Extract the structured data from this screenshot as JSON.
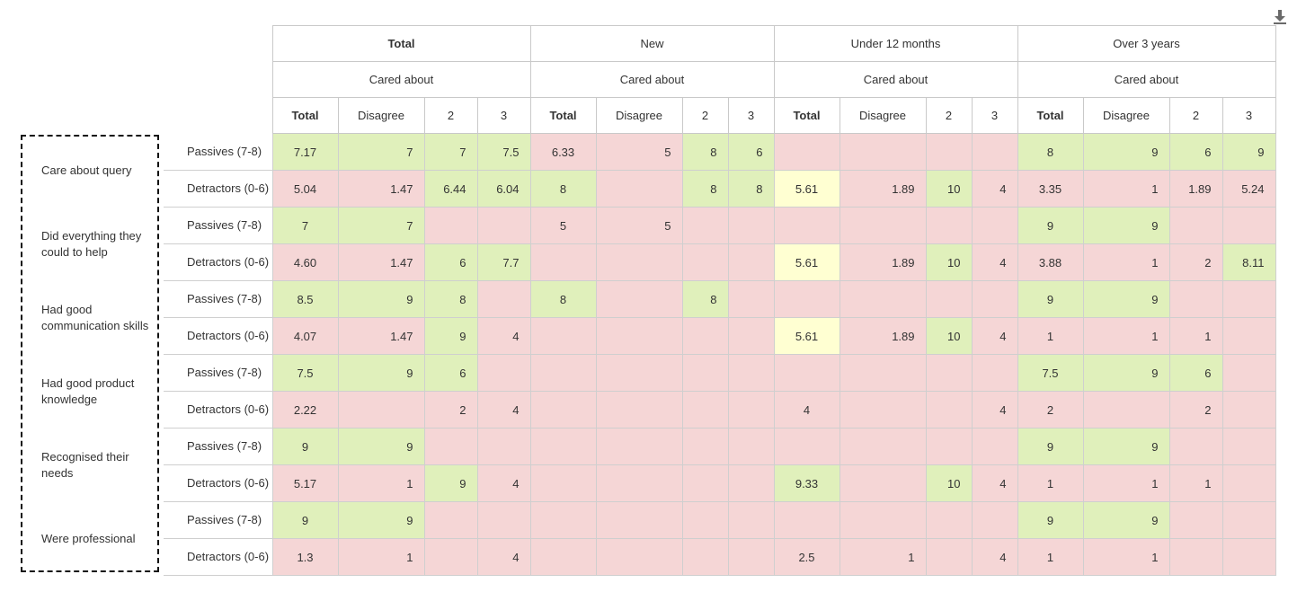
{
  "colors": {
    "green": "#e0f0bb",
    "pink": "#f5d6d6",
    "yellow": "#ffffd2",
    "grid": "#cfcfcf"
  },
  "toolbar": {
    "download_icon": "download-icon"
  },
  "header": {
    "groups": [
      "Total",
      "New",
      "Under 12 months",
      "Over 3 years"
    ],
    "sub": "Cared about",
    "cols": [
      "Total",
      "Disagree",
      "2",
      "3"
    ]
  },
  "rows": [
    {
      "label": "Care about query",
      "segs": [
        {
          "seg": "Passives (7-8)",
          "cells": [
            {
              "v": "7.17",
              "c": "green"
            },
            {
              "v": "7",
              "c": "green"
            },
            {
              "v": "7",
              "c": "green"
            },
            {
              "v": "7.5",
              "c": "green"
            },
            {
              "v": "6.33",
              "c": "pink"
            },
            {
              "v": "5",
              "c": "pink"
            },
            {
              "v": "8",
              "c": "green"
            },
            {
              "v": "6",
              "c": "green"
            },
            {
              "v": "",
              "c": "pink"
            },
            {
              "v": "",
              "c": "pink"
            },
            {
              "v": "",
              "c": "pink"
            },
            {
              "v": "",
              "c": "pink"
            },
            {
              "v": "8",
              "c": "green"
            },
            {
              "v": "9",
              "c": "green"
            },
            {
              "v": "6",
              "c": "green"
            },
            {
              "v": "9",
              "c": "green"
            }
          ]
        },
        {
          "seg": "Detractors (0-6)",
          "cells": [
            {
              "v": "5.04",
              "c": "pink"
            },
            {
              "v": "1.47",
              "c": "pink"
            },
            {
              "v": "6.44",
              "c": "green"
            },
            {
              "v": "6.04",
              "c": "green"
            },
            {
              "v": "8",
              "c": "green"
            },
            {
              "v": "",
              "c": "pink"
            },
            {
              "v": "8",
              "c": "green"
            },
            {
              "v": "8",
              "c": "green"
            },
            {
              "v": "5.61",
              "c": "yellow"
            },
            {
              "v": "1.89",
              "c": "pink"
            },
            {
              "v": "10",
              "c": "green"
            },
            {
              "v": "4",
              "c": "pink"
            },
            {
              "v": "3.35",
              "c": "pink"
            },
            {
              "v": "1",
              "c": "pink"
            },
            {
              "v": "1.89",
              "c": "pink"
            },
            {
              "v": "5.24",
              "c": "pink"
            }
          ]
        }
      ]
    },
    {
      "label": "Did everything they could to help",
      "segs": [
        {
          "seg": "Passives (7-8)",
          "cells": [
            {
              "v": "7",
              "c": "green"
            },
            {
              "v": "7",
              "c": "green"
            },
            {
              "v": "",
              "c": "pink"
            },
            {
              "v": "",
              "c": "pink"
            },
            {
              "v": "5",
              "c": "pink"
            },
            {
              "v": "5",
              "c": "pink"
            },
            {
              "v": "",
              "c": "pink"
            },
            {
              "v": "",
              "c": "pink"
            },
            {
              "v": "",
              "c": "pink"
            },
            {
              "v": "",
              "c": "pink"
            },
            {
              "v": "",
              "c": "pink"
            },
            {
              "v": "",
              "c": "pink"
            },
            {
              "v": "9",
              "c": "green"
            },
            {
              "v": "9",
              "c": "green"
            },
            {
              "v": "",
              "c": "pink"
            },
            {
              "v": "",
              "c": "pink"
            }
          ]
        },
        {
          "seg": "Detractors (0-6)",
          "cells": [
            {
              "v": "4.60",
              "c": "pink"
            },
            {
              "v": "1.47",
              "c": "pink"
            },
            {
              "v": "6",
              "c": "green"
            },
            {
              "v": "7.7",
              "c": "green"
            },
            {
              "v": "",
              "c": "pink"
            },
            {
              "v": "",
              "c": "pink"
            },
            {
              "v": "",
              "c": "pink"
            },
            {
              "v": "",
              "c": "pink"
            },
            {
              "v": "5.61",
              "c": "yellow"
            },
            {
              "v": "1.89",
              "c": "pink"
            },
            {
              "v": "10",
              "c": "green"
            },
            {
              "v": "4",
              "c": "pink"
            },
            {
              "v": "3.88",
              "c": "pink"
            },
            {
              "v": "1",
              "c": "pink"
            },
            {
              "v": "2",
              "c": "pink"
            },
            {
              "v": "8.11",
              "c": "green"
            }
          ]
        }
      ]
    },
    {
      "label": "Had good communication skills",
      "segs": [
        {
          "seg": "Passives (7-8)",
          "cells": [
            {
              "v": "8.5",
              "c": "green"
            },
            {
              "v": "9",
              "c": "green"
            },
            {
              "v": "8",
              "c": "green"
            },
            {
              "v": "",
              "c": "pink"
            },
            {
              "v": "8",
              "c": "green"
            },
            {
              "v": "",
              "c": "pink"
            },
            {
              "v": "8",
              "c": "green"
            },
            {
              "v": "",
              "c": "pink"
            },
            {
              "v": "",
              "c": "pink"
            },
            {
              "v": "",
              "c": "pink"
            },
            {
              "v": "",
              "c": "pink"
            },
            {
              "v": "",
              "c": "pink"
            },
            {
              "v": "9",
              "c": "green"
            },
            {
              "v": "9",
              "c": "green"
            },
            {
              "v": "",
              "c": "pink"
            },
            {
              "v": "",
              "c": "pink"
            }
          ]
        },
        {
          "seg": "Detractors (0-6)",
          "cells": [
            {
              "v": "4.07",
              "c": "pink"
            },
            {
              "v": "1.47",
              "c": "pink"
            },
            {
              "v": "9",
              "c": "green"
            },
            {
              "v": "4",
              "c": "pink"
            },
            {
              "v": "",
              "c": "pink"
            },
            {
              "v": "",
              "c": "pink"
            },
            {
              "v": "",
              "c": "pink"
            },
            {
              "v": "",
              "c": "pink"
            },
            {
              "v": "5.61",
              "c": "yellow"
            },
            {
              "v": "1.89",
              "c": "pink"
            },
            {
              "v": "10",
              "c": "green"
            },
            {
              "v": "4",
              "c": "pink"
            },
            {
              "v": "1",
              "c": "pink"
            },
            {
              "v": "1",
              "c": "pink"
            },
            {
              "v": "1",
              "c": "pink"
            },
            {
              "v": "",
              "c": "pink"
            }
          ]
        }
      ]
    },
    {
      "label": "Had good product knowledge",
      "segs": [
        {
          "seg": "Passives (7-8)",
          "cells": [
            {
              "v": "7.5",
              "c": "green"
            },
            {
              "v": "9",
              "c": "green"
            },
            {
              "v": "6",
              "c": "green"
            },
            {
              "v": "",
              "c": "pink"
            },
            {
              "v": "",
              "c": "pink"
            },
            {
              "v": "",
              "c": "pink"
            },
            {
              "v": "",
              "c": "pink"
            },
            {
              "v": "",
              "c": "pink"
            },
            {
              "v": "",
              "c": "pink"
            },
            {
              "v": "",
              "c": "pink"
            },
            {
              "v": "",
              "c": "pink"
            },
            {
              "v": "",
              "c": "pink"
            },
            {
              "v": "7.5",
              "c": "green"
            },
            {
              "v": "9",
              "c": "green"
            },
            {
              "v": "6",
              "c": "green"
            },
            {
              "v": "",
              "c": "pink"
            }
          ]
        },
        {
          "seg": "Detractors (0-6)",
          "cells": [
            {
              "v": "2.22",
              "c": "pink"
            },
            {
              "v": "",
              "c": "pink"
            },
            {
              "v": "2",
              "c": "pink"
            },
            {
              "v": "4",
              "c": "pink"
            },
            {
              "v": "",
              "c": "pink"
            },
            {
              "v": "",
              "c": "pink"
            },
            {
              "v": "",
              "c": "pink"
            },
            {
              "v": "",
              "c": "pink"
            },
            {
              "v": "4",
              "c": "pink"
            },
            {
              "v": "",
              "c": "pink"
            },
            {
              "v": "",
              "c": "pink"
            },
            {
              "v": "4",
              "c": "pink"
            },
            {
              "v": "2",
              "c": "pink"
            },
            {
              "v": "",
              "c": "pink"
            },
            {
              "v": "2",
              "c": "pink"
            },
            {
              "v": "",
              "c": "pink"
            }
          ]
        }
      ]
    },
    {
      "label": "Recognised their needs",
      "segs": [
        {
          "seg": "Passives (7-8)",
          "cells": [
            {
              "v": "9",
              "c": "green"
            },
            {
              "v": "9",
              "c": "green"
            },
            {
              "v": "",
              "c": "pink"
            },
            {
              "v": "",
              "c": "pink"
            },
            {
              "v": "",
              "c": "pink"
            },
            {
              "v": "",
              "c": "pink"
            },
            {
              "v": "",
              "c": "pink"
            },
            {
              "v": "",
              "c": "pink"
            },
            {
              "v": "",
              "c": "pink"
            },
            {
              "v": "",
              "c": "pink"
            },
            {
              "v": "",
              "c": "pink"
            },
            {
              "v": "",
              "c": "pink"
            },
            {
              "v": "9",
              "c": "green"
            },
            {
              "v": "9",
              "c": "green"
            },
            {
              "v": "",
              "c": "pink"
            },
            {
              "v": "",
              "c": "pink"
            }
          ]
        },
        {
          "seg": "Detractors (0-6)",
          "cells": [
            {
              "v": "5.17",
              "c": "pink"
            },
            {
              "v": "1",
              "c": "pink"
            },
            {
              "v": "9",
              "c": "green"
            },
            {
              "v": "4",
              "c": "pink"
            },
            {
              "v": "",
              "c": "pink"
            },
            {
              "v": "",
              "c": "pink"
            },
            {
              "v": "",
              "c": "pink"
            },
            {
              "v": "",
              "c": "pink"
            },
            {
              "v": "9.33",
              "c": "green"
            },
            {
              "v": "",
              "c": "pink"
            },
            {
              "v": "10",
              "c": "green"
            },
            {
              "v": "4",
              "c": "pink"
            },
            {
              "v": "1",
              "c": "pink"
            },
            {
              "v": "1",
              "c": "pink"
            },
            {
              "v": "1",
              "c": "pink"
            },
            {
              "v": "",
              "c": "pink"
            }
          ]
        }
      ]
    },
    {
      "label": "Were professional",
      "segs": [
        {
          "seg": "Passives (7-8)",
          "cells": [
            {
              "v": "9",
              "c": "green"
            },
            {
              "v": "9",
              "c": "green"
            },
            {
              "v": "",
              "c": "pink"
            },
            {
              "v": "",
              "c": "pink"
            },
            {
              "v": "",
              "c": "pink"
            },
            {
              "v": "",
              "c": "pink"
            },
            {
              "v": "",
              "c": "pink"
            },
            {
              "v": "",
              "c": "pink"
            },
            {
              "v": "",
              "c": "pink"
            },
            {
              "v": "",
              "c": "pink"
            },
            {
              "v": "",
              "c": "pink"
            },
            {
              "v": "",
              "c": "pink"
            },
            {
              "v": "9",
              "c": "green"
            },
            {
              "v": "9",
              "c": "green"
            },
            {
              "v": "",
              "c": "pink"
            },
            {
              "v": "",
              "c": "pink"
            }
          ]
        },
        {
          "seg": "Detractors (0-6)",
          "cells": [
            {
              "v": "1.3",
              "c": "pink"
            },
            {
              "v": "1",
              "c": "pink"
            },
            {
              "v": "",
              "c": "pink"
            },
            {
              "v": "4",
              "c": "pink"
            },
            {
              "v": "",
              "c": "pink"
            },
            {
              "v": "",
              "c": "pink"
            },
            {
              "v": "",
              "c": "pink"
            },
            {
              "v": "",
              "c": "pink"
            },
            {
              "v": "2.5",
              "c": "pink"
            },
            {
              "v": "1",
              "c": "pink"
            },
            {
              "v": "",
              "c": "pink"
            },
            {
              "v": "4",
              "c": "pink"
            },
            {
              "v": "1",
              "c": "pink"
            },
            {
              "v": "1",
              "c": "pink"
            },
            {
              "v": "",
              "c": "pink"
            },
            {
              "v": "",
              "c": "pink"
            }
          ]
        }
      ]
    }
  ]
}
